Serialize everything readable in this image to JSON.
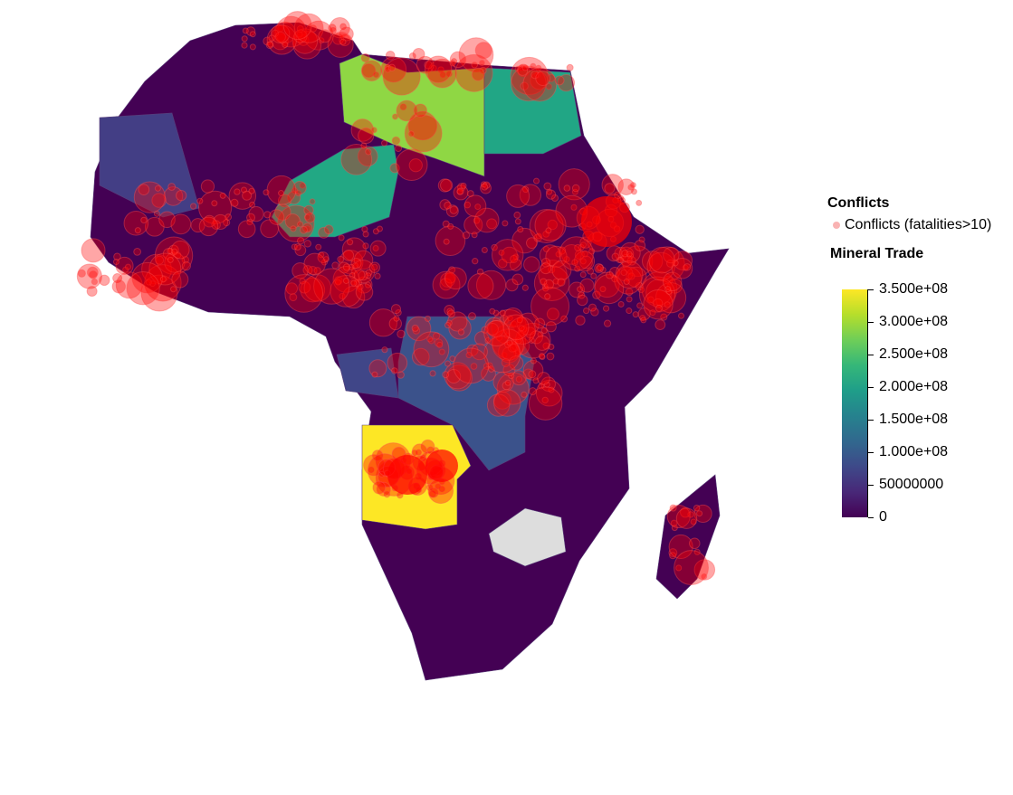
{
  "legend": {
    "conflicts_title": "Conflicts",
    "conflicts_item": "Conflicts (fatalities>10)",
    "conflict_color": "#ff0000",
    "trade_title": "Mineral Trade",
    "colormap": "viridis",
    "ticks": [
      "3.500e+08",
      "3.000e+08",
      "2.500e+08",
      "2.000e+08",
      "1.500e+08",
      "1.000e+08",
      "50000000",
      "0"
    ],
    "range": [
      0,
      350000000
    ]
  },
  "countries": {
    "base_color": "#440154",
    "highlighted": [
      {
        "name": "Libya",
        "color": "#8fd744"
      },
      {
        "name": "Egypt",
        "color": "#21a685"
      },
      {
        "name": "Niger",
        "color": "#22a884"
      },
      {
        "name": "Angola",
        "color": "#fde725"
      },
      {
        "name": "DR Congo",
        "color": "#3b528b"
      },
      {
        "name": "Mauritania",
        "color": "#433e85"
      },
      {
        "name": "Congo",
        "color": "#404688"
      },
      {
        "name": "Zimbabwe",
        "color": "#dddddd"
      }
    ]
  }
}
